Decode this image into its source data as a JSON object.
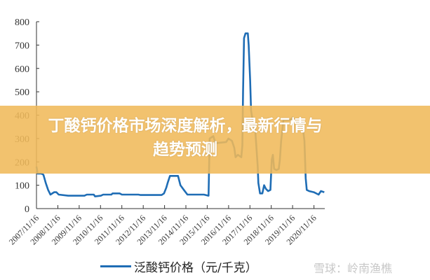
{
  "chart_data": {
    "type": "line",
    "title": "",
    "xlabel": "",
    "ylabel": "",
    "ylim": [
      0,
      800
    ],
    "yticks": [
      0,
      100,
      200,
      300,
      400,
      500,
      600,
      700,
      800
    ],
    "xticks": [
      "2007/11/16",
      "2008/11/16",
      "2009/11/16",
      "2010/11/16",
      "2011/11/16",
      "2012/11/16",
      "2013/11/16",
      "2014/11/16",
      "2015/11/16",
      "2016/11/16",
      "2017/11/16",
      "2018/11/16",
      "2019/11/16",
      "2020/11/16"
    ],
    "xlim": [
      "2007-11-16",
      "2021-05-20"
    ],
    "grid": false,
    "legend_position": "bottom",
    "series": [
      {
        "name": "泛酸钙价格（元/千克）",
        "color": "#1f6db5",
        "points": [
          [
            "2007-11-16",
            180
          ],
          [
            "2007-12-05",
            150
          ],
          [
            "2008-02-06",
            150
          ],
          [
            "2008-03-14",
            145
          ],
          [
            "2008-04-23",
            110
          ],
          [
            "2008-06-02",
            80
          ],
          [
            "2008-07-12",
            60
          ],
          [
            "2008-09-12",
            70
          ],
          [
            "2008-10-22",
            70
          ],
          [
            "2008-12-01",
            60
          ],
          [
            "2009-05-12",
            55
          ],
          [
            "2010-02-14",
            55
          ],
          [
            "2010-03-26",
            60
          ],
          [
            "2010-07-24",
            60
          ],
          [
            "2010-08-15",
            52
          ],
          [
            "2010-11-22",
            55
          ],
          [
            "2011-01-01",
            60
          ],
          [
            "2011-05-20",
            60
          ],
          [
            "2011-06-10",
            65
          ],
          [
            "2011-10-08",
            65
          ],
          [
            "2011-11-17",
            60
          ],
          [
            "2012-08-25",
            60
          ],
          [
            "2012-10-01",
            58
          ],
          [
            "2013-09-27",
            58
          ],
          [
            "2013-11-06",
            65
          ],
          [
            "2013-12-16",
            90
          ],
          [
            "2014-01-08",
            110
          ],
          [
            "2014-02-17",
            140
          ],
          [
            "2014-07-05",
            140
          ],
          [
            "2014-08-14",
            100
          ],
          [
            "2014-10-12",
            80
          ],
          [
            "2014-12-13",
            60
          ],
          [
            "2015-09-20",
            60
          ],
          [
            "2015-12-09",
            55
          ],
          [
            "2015-12-28",
            300
          ],
          [
            "2016-02-28",
            310
          ],
          [
            "2016-04-05",
            280
          ],
          [
            "2016-10-05",
            285
          ],
          [
            "2016-11-14",
            300
          ],
          [
            "2017-01-12",
            290
          ],
          [
            "2017-02-21",
            260
          ],
          [
            "2017-03-15",
            220
          ],
          [
            "2017-04-24",
            230
          ],
          [
            "2017-06-21",
            220
          ],
          [
            "2017-07-09",
            270
          ],
          [
            "2017-07-22",
            500
          ],
          [
            "2017-08-07",
            730
          ],
          [
            "2017-09-01",
            750
          ],
          [
            "2017-10-11",
            750
          ],
          [
            "2017-10-26",
            700
          ],
          [
            "2017-11-20",
            550
          ],
          [
            "2017-12-05",
            420
          ],
          [
            "2017-12-30",
            380
          ],
          [
            "2018-02-17",
            330
          ],
          [
            "2018-03-29",
            180
          ],
          [
            "2018-04-09",
            110
          ],
          [
            "2018-05-08",
            65
          ],
          [
            "2018-06-17",
            65
          ],
          [
            "2018-07-16",
            100
          ],
          [
            "2018-08-14",
            85
          ],
          [
            "2018-09-23",
            75
          ],
          [
            "2018-11-02",
            80
          ],
          [
            "2018-11-24",
            210
          ],
          [
            "2018-12-14",
            230
          ],
          [
            "2019-01-04",
            170
          ],
          [
            "2019-02-13",
            165
          ],
          [
            "2019-03-25",
            170
          ],
          [
            "2019-04-13",
            210
          ],
          [
            "2019-05-04",
            290
          ],
          [
            "2019-06-13",
            380
          ],
          [
            "2019-10-09",
            380
          ],
          [
            "2019-11-18",
            390
          ],
          [
            "2019-12-28",
            370
          ],
          [
            "2020-04-27",
            370
          ],
          [
            "2020-06-06",
            290
          ],
          [
            "2020-06-27",
            130
          ],
          [
            "2020-07-16",
            80
          ],
          [
            "2020-08-25",
            75
          ],
          [
            "2020-11-14",
            70
          ],
          [
            "2021-02-03",
            60
          ],
          [
            "2021-03-15",
            75
          ],
          [
            "2021-05-12",
            70
          ]
        ]
      }
    ]
  },
  "banner": {
    "line1": "丁酸钙价格市场深度解析，最新行情与",
    "line2": "趋势预测",
    "color": "#f0b95a"
  },
  "watermark": "雪球：岭南渔樵"
}
